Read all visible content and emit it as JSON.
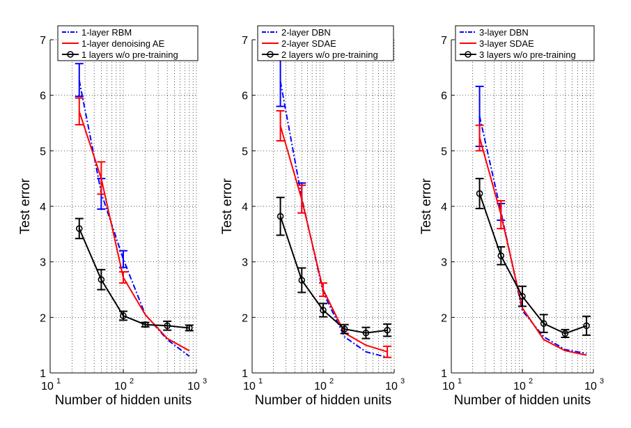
{
  "chart_data": [
    {
      "type": "line",
      "xscale": "log",
      "xlim": [
        10,
        1000
      ],
      "ylim": [
        1,
        7
      ],
      "xticks": [
        10,
        100,
        1000
      ],
      "xtick_labels": [
        {
          "base": "10",
          "exp": "1"
        },
        {
          "base": "10",
          "exp": "2"
        },
        {
          "base": "10",
          "exp": "3"
        }
      ],
      "yticks": [
        1,
        2,
        3,
        4,
        5,
        6,
        7
      ],
      "xlabel": "Number of hidden units",
      "ylabel": "Test error",
      "grid": "dotted",
      "legend_position": "top",
      "x": [
        25,
        50,
        100,
        200,
        400,
        800
      ],
      "series": [
        {
          "name": "1-layer RBM",
          "color": "#0000ff",
          "style": "dashdot",
          "marker": "none",
          "values": [
            6.27,
            4.24,
            3.05,
            2.05,
            1.6,
            1.3
          ],
          "errorbars": [
            [
              0,
              5.98,
              6.57
            ],
            [
              1,
              3.95,
              4.5
            ],
            [
              2,
              2.9,
              3.2
            ]
          ]
        },
        {
          "name": "1-layer denoising AE",
          "color": "#ff0000",
          "style": "solid",
          "marker": "none",
          "values": [
            5.71,
            4.5,
            2.72,
            2.05,
            1.62,
            1.4
          ],
          "errorbars": [
            [
              0,
              5.47,
              5.95
            ],
            [
              1,
              4.22,
              4.8
            ],
            [
              2,
              2.62,
              2.82
            ]
          ]
        },
        {
          "name": "1 layers w/o pre-training",
          "color": "#000000",
          "style": "solid",
          "marker": "circle",
          "values": [
            3.6,
            2.68,
            2.03,
            1.87,
            1.85,
            1.81
          ],
          "errorbars": [
            [
              0,
              3.42,
              3.78
            ],
            [
              1,
              2.5,
              2.86
            ],
            [
              2,
              1.95,
              2.11
            ],
            [
              3,
              1.83,
              1.91
            ],
            [
              4,
              1.77,
              1.93
            ],
            [
              5,
              1.76,
              1.86
            ]
          ]
        }
      ]
    },
    {
      "type": "line",
      "xscale": "log",
      "xlim": [
        10,
        1000
      ],
      "ylim": [
        1,
        7
      ],
      "xticks": [
        10,
        100,
        1000
      ],
      "xtick_labels": [
        {
          "base": "10",
          "exp": "1"
        },
        {
          "base": "10",
          "exp": "2"
        },
        {
          "base": "10",
          "exp": "3"
        }
      ],
      "yticks": [
        1,
        2,
        3,
        4,
        5,
        6,
        7
      ],
      "xlabel": "Number of hidden units",
      "ylabel": "Test error",
      "grid": "dotted",
      "legend_position": "top",
      "x": [
        25,
        50,
        100,
        200,
        400,
        800
      ],
      "series": [
        {
          "name": "2-layer DBN",
          "color": "#0000ff",
          "style": "dashdot",
          "marker": "none",
          "values": [
            6.25,
            4.15,
            2.45,
            1.65,
            1.38,
            1.28
          ],
          "errorbars": [
            [
              0,
              5.8,
              6.7
            ],
            [
              1,
              3.88,
              4.42
            ]
          ]
        },
        {
          "name": "2-layer SDAE",
          "color": "#ff0000",
          "style": "solid",
          "marker": "none",
          "values": [
            5.45,
            4.12,
            2.5,
            1.72,
            1.5,
            1.38
          ],
          "errorbars": [
            [
              0,
              5.18,
              5.72
            ],
            [
              1,
              3.88,
              4.38
            ],
            [
              2,
              2.38,
              2.62
            ],
            [
              5,
              1.28,
              1.48
            ]
          ]
        },
        {
          "name": "2 layers w/o pre-training",
          "color": "#000000",
          "style": "solid",
          "marker": "circle",
          "values": [
            3.82,
            2.67,
            2.13,
            1.79,
            1.72,
            1.77
          ],
          "errorbars": [
            [
              0,
              3.48,
              4.16
            ],
            [
              1,
              2.45,
              2.89
            ],
            [
              2,
              2.01,
              2.25
            ],
            [
              3,
              1.71,
              1.87
            ],
            [
              4,
              1.62,
              1.82
            ],
            [
              5,
              1.66,
              1.88
            ]
          ]
        }
      ]
    },
    {
      "type": "line",
      "xscale": "log",
      "xlim": [
        10,
        1000
      ],
      "ylim": [
        1,
        7
      ],
      "xticks": [
        10,
        100,
        1000
      ],
      "xtick_labels": [
        {
          "base": "10",
          "exp": "1"
        },
        {
          "base": "10",
          "exp": "2"
        },
        {
          "base": "10",
          "exp": "3"
        }
      ],
      "yticks": [
        1,
        2,
        3,
        4,
        5,
        6,
        7
      ],
      "xlabel": "Number of hidden units",
      "ylabel": "Test error",
      "grid": "dotted",
      "legend_position": "top",
      "x": [
        25,
        50,
        100,
        200,
        400,
        800
      ],
      "series": [
        {
          "name": "3-layer DBN",
          "color": "#0000ff",
          "style": "dashdot",
          "marker": "none",
          "values": [
            5.62,
            3.9,
            2.12,
            1.65,
            1.42,
            1.35
          ],
          "errorbars": [
            [
              0,
              5.08,
              6.16
            ],
            [
              1,
              3.75,
              4.05
            ]
          ]
        },
        {
          "name": "3-layer SDAE",
          "color": "#ff0000",
          "style": "solid",
          "marker": "none",
          "values": [
            5.24,
            3.85,
            2.17,
            1.6,
            1.4,
            1.32
          ],
          "errorbars": [
            [
              0,
              5.0,
              5.46
            ],
            [
              1,
              3.6,
              4.1
            ]
          ]
        },
        {
          "name": "3 layers w/o pre-training",
          "color": "#000000",
          "style": "solid",
          "marker": "circle",
          "values": [
            4.23,
            3.11,
            2.38,
            1.89,
            1.71,
            1.85
          ],
          "errorbars": [
            [
              0,
              3.96,
              4.5
            ],
            [
              1,
              2.95,
              3.27
            ],
            [
              2,
              2.2,
              2.56
            ],
            [
              3,
              1.73,
              2.05
            ],
            [
              4,
              1.64,
              1.78
            ],
            [
              5,
              1.68,
              2.02
            ]
          ]
        }
      ]
    }
  ]
}
